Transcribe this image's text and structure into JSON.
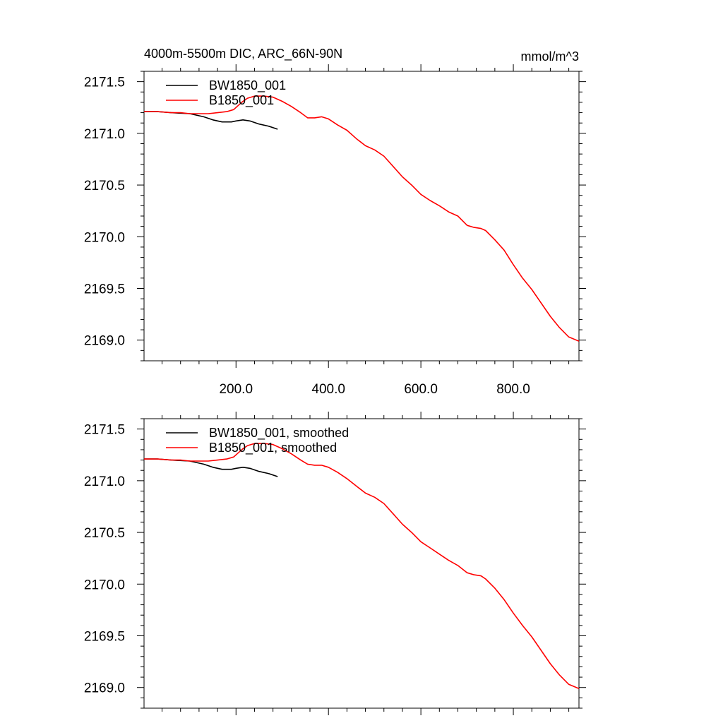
{
  "figure": {
    "title_left": "4000m-5500m DIC, ARC_66N-90N",
    "title_right": "mmol/m^3"
  },
  "chart_data": [
    {
      "type": "line",
      "title": "4000m-5500m DIC, ARC_66N-90N",
      "units": "mmol/m^3",
      "xlim": [
        1,
        942
      ],
      "ylim": [
        2168.8,
        2171.6
      ],
      "xticks": [
        200,
        400,
        600,
        800
      ],
      "xtick_labels": [
        "200.0",
        "400.0",
        "600.0",
        "800.0"
      ],
      "yticks": [
        2169.0,
        2169.5,
        2170.0,
        2170.5,
        2171.0,
        2171.5
      ],
      "ytick_labels": [
        "2169.0",
        "2169.5",
        "2170.0",
        "2170.5",
        "2171.0",
        "2171.5"
      ],
      "legend": [
        "BW1850_001",
        "B1850_001"
      ],
      "series": [
        {
          "name": "BW1850_001",
          "color": "#000000",
          "x": [
            1,
            30,
            60,
            100,
            130,
            150,
            170,
            190,
            200,
            215,
            230,
            250,
            270,
            290
          ],
          "y": [
            2171.21,
            2171.21,
            2171.2,
            2171.19,
            2171.16,
            2171.13,
            2171.11,
            2171.11,
            2171.12,
            2171.13,
            2171.12,
            2171.09,
            2171.07,
            2171.04
          ]
        },
        {
          "name": "B1850_001",
          "color": "#ff0000",
          "x": [
            1,
            30,
            60,
            80,
            100,
            140,
            160,
            180,
            195,
            205,
            215,
            225,
            240,
            260,
            280,
            300,
            320,
            340,
            355,
            370,
            385,
            400,
            420,
            440,
            460,
            480,
            500,
            520,
            540,
            560,
            580,
            600,
            620,
            640,
            660,
            680,
            700,
            715,
            730,
            740,
            760,
            780,
            800,
            820,
            840,
            860,
            880,
            900,
            920,
            942
          ],
          "y": [
            2171.21,
            2171.21,
            2171.2,
            2171.2,
            2171.19,
            2171.19,
            2171.2,
            2171.21,
            2171.23,
            2171.27,
            2171.31,
            2171.34,
            2171.36,
            2171.36,
            2171.35,
            2171.31,
            2171.26,
            2171.2,
            2171.15,
            2171.15,
            2171.16,
            2171.14,
            2171.08,
            2171.03,
            2170.95,
            2170.88,
            2170.84,
            2170.78,
            2170.68,
            2170.58,
            2170.5,
            2170.41,
            2170.35,
            2170.3,
            2170.24,
            2170.2,
            2170.11,
            2170.09,
            2170.08,
            2170.06,
            2169.97,
            2169.87,
            2169.73,
            2169.6,
            2169.49,
            2169.36,
            2169.23,
            2169.12,
            2169.03,
            2168.99
          ]
        }
      ]
    },
    {
      "type": "line",
      "title": "",
      "units": "",
      "xlim": [
        1,
        942
      ],
      "ylim": [
        2168.8,
        2171.6
      ],
      "xticks": [
        200,
        400,
        600,
        800
      ],
      "xtick_labels": [],
      "yticks": [
        2169.0,
        2169.5,
        2170.0,
        2170.5,
        2171.0,
        2171.5
      ],
      "ytick_labels": [
        "2169.0",
        "2169.5",
        "2170.0",
        "2170.5",
        "2171.0",
        "2171.5"
      ],
      "legend": [
        "BW1850_001, smoothed",
        "B1850_001, smoothed"
      ],
      "series": [
        {
          "name": "BW1850_001, smoothed",
          "color": "#000000",
          "x": [
            1,
            30,
            60,
            100,
            130,
            150,
            170,
            190,
            200,
            215,
            230,
            250,
            270,
            290
          ],
          "y": [
            2171.21,
            2171.21,
            2171.2,
            2171.19,
            2171.16,
            2171.13,
            2171.11,
            2171.11,
            2171.12,
            2171.13,
            2171.12,
            2171.09,
            2171.07,
            2171.04
          ]
        },
        {
          "name": "B1850_001, smoothed",
          "color": "#ff0000",
          "x": [
            1,
            30,
            60,
            80,
            100,
            140,
            160,
            180,
            195,
            205,
            215,
            225,
            240,
            260,
            280,
            300,
            320,
            340,
            355,
            370,
            385,
            400,
            420,
            440,
            460,
            480,
            500,
            520,
            540,
            560,
            580,
            600,
            620,
            640,
            660,
            680,
            700,
            715,
            730,
            740,
            760,
            780,
            800,
            820,
            840,
            860,
            880,
            900,
            920,
            942
          ],
          "y": [
            2171.21,
            2171.21,
            2171.2,
            2171.2,
            2171.19,
            2171.19,
            2171.2,
            2171.21,
            2171.23,
            2171.27,
            2171.31,
            2171.34,
            2171.36,
            2171.36,
            2171.35,
            2171.31,
            2171.26,
            2171.2,
            2171.16,
            2171.15,
            2171.15,
            2171.13,
            2171.08,
            2171.02,
            2170.95,
            2170.88,
            2170.84,
            2170.78,
            2170.68,
            2170.58,
            2170.5,
            2170.41,
            2170.35,
            2170.29,
            2170.23,
            2170.18,
            2170.11,
            2170.09,
            2170.08,
            2170.05,
            2169.96,
            2169.85,
            2169.72,
            2169.6,
            2169.49,
            2169.36,
            2169.23,
            2169.12,
            2169.03,
            2168.99
          ]
        }
      ]
    }
  ]
}
